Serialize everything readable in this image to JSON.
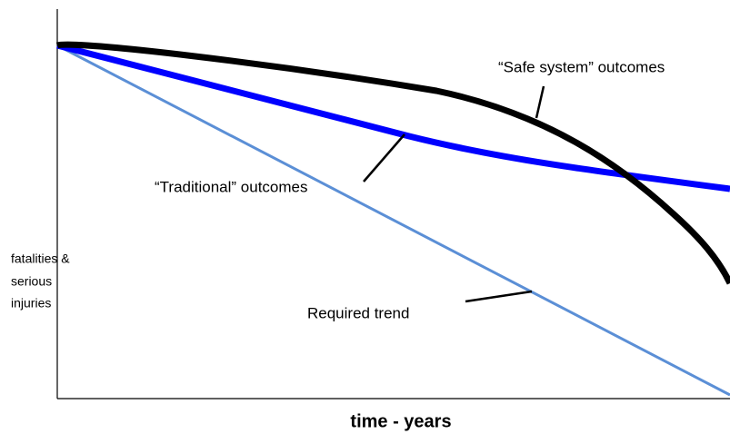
{
  "labels": {
    "safe_system": "“Safe system” outcomes",
    "traditional": "“Traditional” outcomes",
    "required": "Required trend"
  },
  "axes": {
    "y_label": [
      "fatalities &",
      "serious",
      "injuries"
    ],
    "x_label": "time - years"
  }
}
